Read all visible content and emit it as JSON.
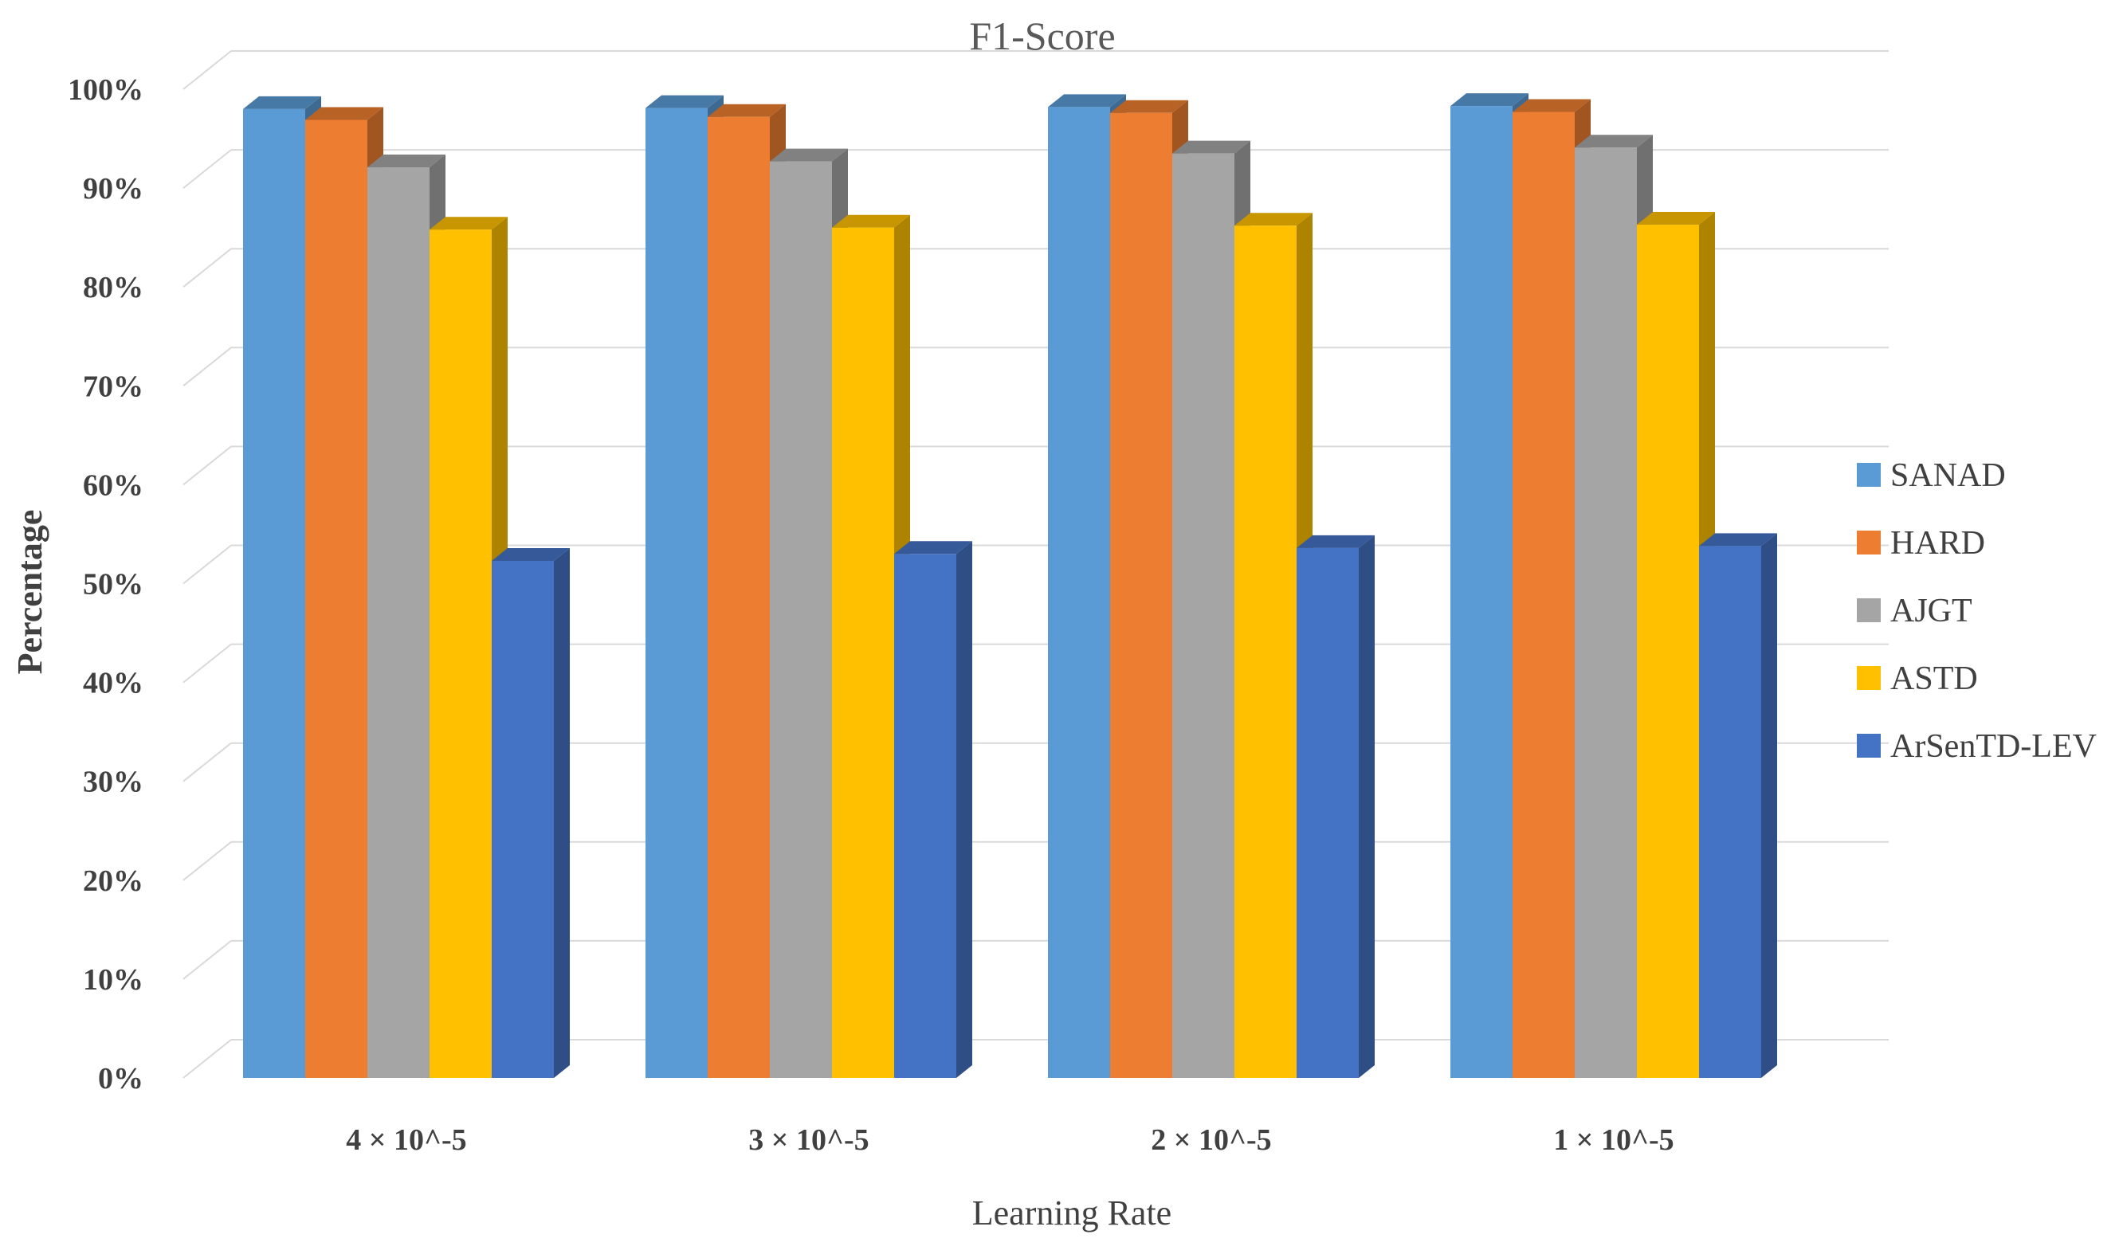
{
  "chart_data": {
    "type": "bar",
    "title": "F1-Score",
    "xlabel": "Learning Rate",
    "ylabel": "Percentage",
    "categories": [
      "4 × 10^-5",
      "3 × 10^-5",
      "2 × 10^-5",
      "1 × 10^-5"
    ],
    "ylim": [
      0,
      100
    ],
    "yticks": [
      "0%",
      "10%",
      "20%",
      "30%",
      "40%",
      "50%",
      "60%",
      "70%",
      "80%",
      "90%",
      "100%"
    ],
    "grid": true,
    "legend_position": "right",
    "style": "3d-clustered",
    "series": [
      {
        "name": "SANAD",
        "color": "#5B9BD5",
        "values": [
          98.0,
          98.1,
          98.2,
          98.3
        ]
      },
      {
        "name": "HARD",
        "color": "#ED7D31",
        "values": [
          96.9,
          97.2,
          97.6,
          97.7
        ]
      },
      {
        "name": "AJGT",
        "color": "#A5A5A5",
        "values": [
          92.1,
          92.7,
          93.5,
          94.1
        ]
      },
      {
        "name": "ASTD",
        "color": "#FFC000",
        "values": [
          85.8,
          86.0,
          86.2,
          86.3
        ]
      },
      {
        "name": "ArSenTD-LEV",
        "color": "#4472C4",
        "values": [
          52.3,
          53.0,
          53.6,
          53.8
        ]
      }
    ]
  }
}
